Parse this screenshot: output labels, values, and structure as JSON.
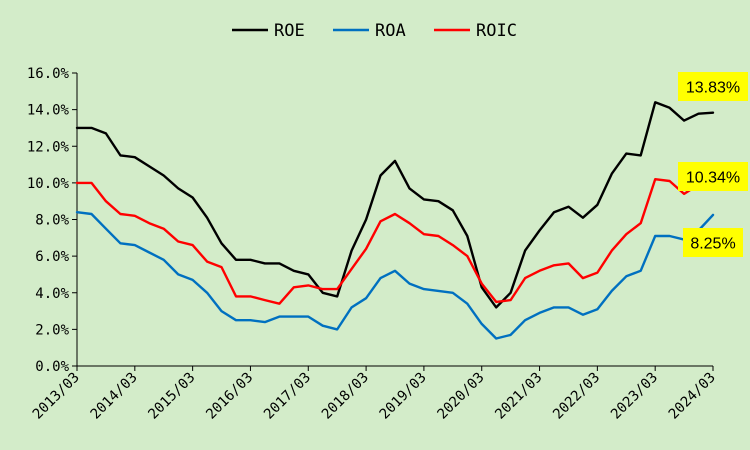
{
  "chart_data": {
    "type": "line",
    "title": "",
    "xlabel": "",
    "ylabel": "",
    "ylim": [
      0,
      16
    ],
    "y_ticks": [
      "0.0%",
      "2.0%",
      "4.0%",
      "6.0%",
      "8.0%",
      "10.0%",
      "12.0%",
      "14.0%",
      "16.0%"
    ],
    "x_ticks": [
      "2013/03",
      "2014/03",
      "2015/03",
      "2016/03",
      "2017/03",
      "2018/03",
      "2019/03",
      "2020/03",
      "2021/03",
      "2022/03",
      "2023/03",
      "2024/03"
    ],
    "grid": "none",
    "legend_position": "top",
    "x": [
      "2013/03",
      "2013/06",
      "2013/09",
      "2013/12",
      "2014/03",
      "2014/06",
      "2014/09",
      "2014/12",
      "2015/03",
      "2015/06",
      "2015/09",
      "2015/12",
      "2016/03",
      "2016/06",
      "2016/09",
      "2016/12",
      "2017/03",
      "2017/06",
      "2017/09",
      "2017/12",
      "2018/03",
      "2018/06",
      "2018/09",
      "2018/12",
      "2019/03",
      "2019/06",
      "2019/09",
      "2019/12",
      "2020/03",
      "2020/06",
      "2020/09",
      "2020/12",
      "2021/03",
      "2021/06",
      "2021/09",
      "2021/12",
      "2022/03",
      "2022/06",
      "2022/09",
      "2022/12",
      "2023/03",
      "2023/06",
      "2023/09",
      "2023/12",
      "2024/03"
    ],
    "series": [
      {
        "name": "ROE",
        "color": "#000000",
        "values": [
          13.0,
          13.0,
          12.7,
          11.5,
          11.4,
          10.9,
          10.4,
          9.7,
          9.2,
          8.1,
          6.7,
          5.8,
          5.8,
          5.6,
          5.6,
          5.2,
          5.0,
          4.0,
          3.8,
          6.3,
          8.0,
          10.4,
          11.2,
          9.7,
          9.1,
          9.0,
          8.5,
          7.1,
          4.3,
          3.2,
          4.0,
          6.3,
          7.4,
          8.4,
          8.7,
          8.1,
          8.8,
          10.5,
          11.6,
          11.5,
          14.4,
          14.1,
          13.4,
          13.78,
          13.83
        ]
      },
      {
        "name": "ROA",
        "color": "#0070c0",
        "values": [
          8.4,
          8.3,
          7.5,
          6.7,
          6.6,
          6.2,
          5.8,
          5.0,
          4.7,
          4.0,
          3.0,
          2.5,
          2.5,
          2.4,
          2.7,
          2.7,
          2.7,
          2.2,
          2.0,
          3.2,
          3.7,
          4.8,
          5.2,
          4.5,
          4.2,
          4.1,
          4.0,
          3.4,
          2.3,
          1.5,
          1.7,
          2.5,
          2.9,
          3.2,
          3.2,
          2.8,
          3.1,
          4.1,
          4.9,
          5.2,
          7.1,
          7.1,
          6.9,
          7.4,
          8.25
        ]
      },
      {
        "name": "ROIC",
        "color": "#ff0000",
        "values": [
          10.0,
          10.0,
          9.0,
          8.3,
          8.2,
          7.8,
          7.5,
          6.8,
          6.6,
          5.7,
          5.4,
          3.8,
          3.8,
          3.6,
          3.4,
          4.3,
          4.4,
          4.2,
          4.2,
          5.3,
          6.4,
          7.9,
          8.3,
          7.8,
          7.2,
          7.1,
          6.6,
          6.0,
          4.5,
          3.5,
          3.6,
          4.8,
          5.2,
          5.5,
          5.6,
          4.8,
          5.1,
          6.3,
          7.2,
          7.8,
          10.2,
          10.1,
          9.4,
          9.9,
          10.34
        ]
      }
    ],
    "annotations": [
      {
        "series": "ROE",
        "text": "13.83%",
        "box_color": "#ffff00"
      },
      {
        "series": "ROIC",
        "text": "10.34%",
        "box_color": "#ffff00"
      },
      {
        "series": "ROA",
        "text": "8.25%",
        "box_color": "#ffff00"
      }
    ]
  }
}
